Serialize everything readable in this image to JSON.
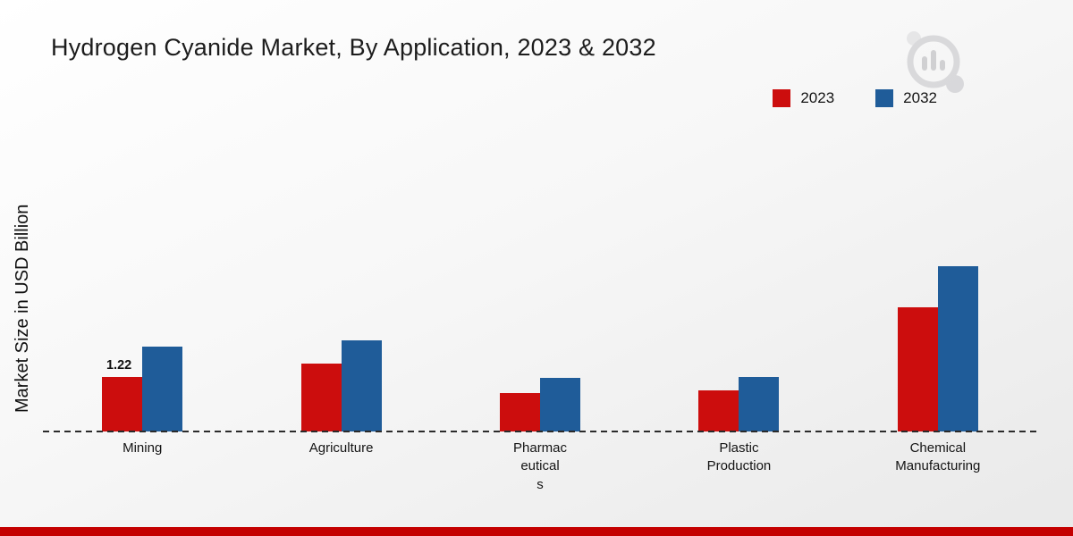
{
  "title": "Hydrogen Cyanide Market, By Application, 2023 & 2032",
  "y_axis_label": "Market Size in USD Billion",
  "legend": {
    "items": [
      {
        "label": "2023",
        "color": "#cc0d0d"
      },
      {
        "label": "2032",
        "color": "#1f5c99"
      }
    ]
  },
  "colors": {
    "series_2023": "#cc0d0d",
    "series_2032": "#1f5c99",
    "bottom_strip": "#c40000",
    "baseline": "#2b2b2b",
    "background_top": "#ffffff",
    "background_bottom": "#e9e9e9"
  },
  "chart_data": {
    "type": "bar",
    "title": "Hydrogen Cyanide Market, By Application, 2023 & 2032",
    "xlabel": "",
    "ylabel": "Market Size in USD Billion",
    "ylim": [
      0,
      4
    ],
    "grid": false,
    "legend_position": "top-right",
    "baseline_style": "dashed",
    "categories": [
      "Mining",
      "Agriculture",
      "Pharmaceuticals",
      "Plastic Production",
      "Chemical Manufacturing"
    ],
    "category_label_lines": [
      [
        "Mining"
      ],
      [
        "Agriculture"
      ],
      [
        "Pharmac",
        "eutical",
        "s"
      ],
      [
        "Plastic",
        "Production"
      ],
      [
        "Chemical",
        "Manufacturing"
      ]
    ],
    "series": [
      {
        "name": "2023",
        "color": "#cc0d0d",
        "values": [
          1.22,
          1.52,
          0.85,
          0.92,
          2.78
        ]
      },
      {
        "name": "2032",
        "color": "#1f5c99",
        "values": [
          1.9,
          2.05,
          1.2,
          1.22,
          3.7
        ]
      }
    ],
    "data_labels": [
      {
        "category": "Mining",
        "series": "2023",
        "text": "1.22"
      }
    ]
  }
}
